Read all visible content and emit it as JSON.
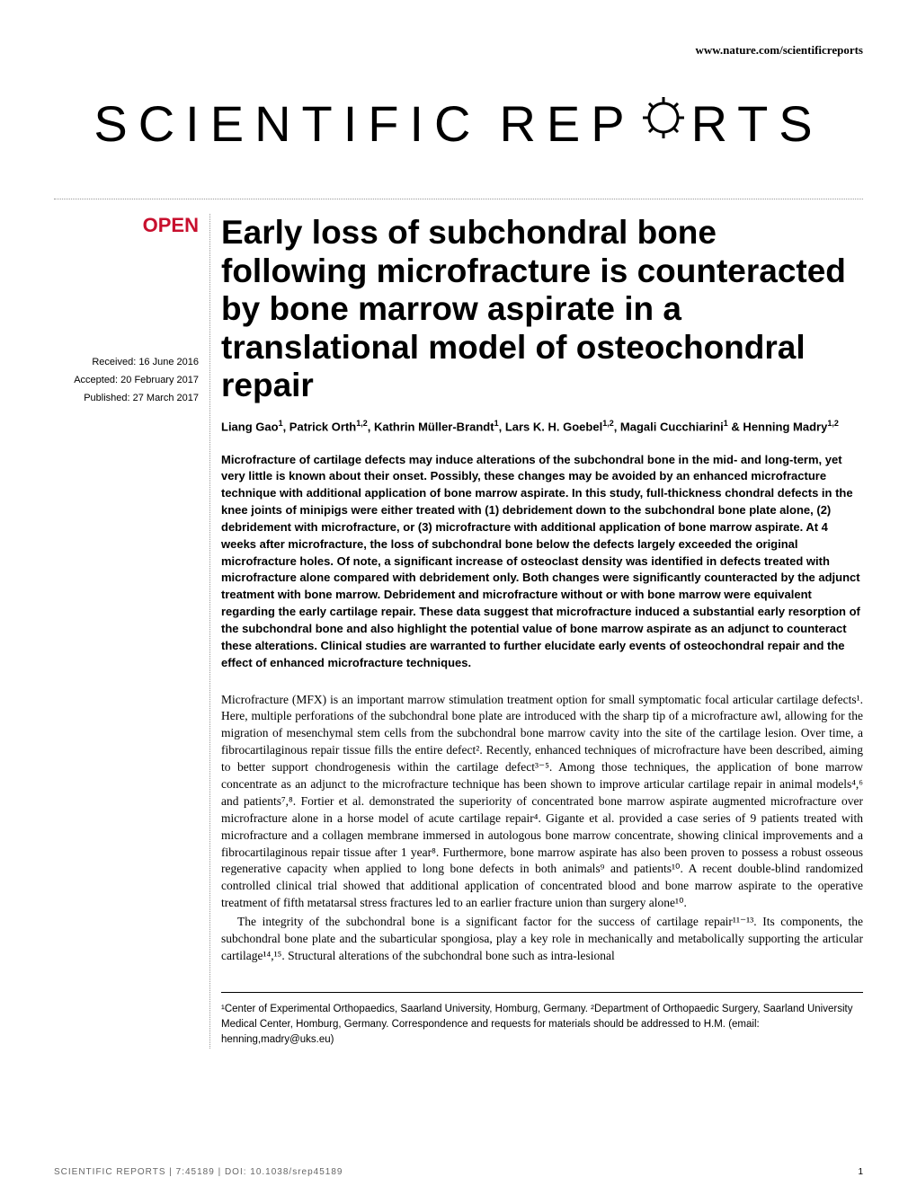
{
  "header": {
    "url": "www.nature.com/scientificreports"
  },
  "logo": {
    "left": "SCIENTIFIC",
    "right": "RTS",
    "mid": "REP"
  },
  "badges": {
    "open": "OPEN"
  },
  "dates": {
    "received": "Received: 16 June 2016",
    "accepted": "Accepted: 20 February 2017",
    "published": "Published: 27 March 2017"
  },
  "article": {
    "title": "Early loss of subchondral bone following microfracture is counteracted by bone marrow aspirate in a translational model of osteochondral repair",
    "authors_html": "Liang Gao<sup>1</sup>, Patrick Orth<sup>1,2</sup>, Kathrin Müller-Brandt<sup>1</sup>, Lars K. H. Goebel<sup>1,2</sup>, Magali Cucchiarini<sup>1</sup> & Henning Madry<sup>1,2</sup>",
    "abstract": "Microfracture of cartilage defects may induce alterations of the subchondral bone in the mid- and long-term, yet very little is known about their onset. Possibly, these changes may be avoided by an enhanced microfracture technique with additional application of bone marrow aspirate. In this study, full-thickness chondral defects in the knee joints of minipigs were either treated with (1) debridement down to the subchondral bone plate alone, (2) debridement with microfracture, or (3) microfracture with additional application of bone marrow aspirate. At 4 weeks after microfracture, the loss of subchondral bone below the defects largely exceeded the original microfracture holes. Of note, a significant increase of osteoclast density was identified in defects treated with microfracture alone compared with debridement only. Both changes were significantly counteracted by the adjunct treatment with bone marrow. Debridement and microfracture without or with bone marrow were equivalent regarding the early cartilage repair. These data suggest that microfracture induced a substantial early resorption of the subchondral bone and also highlight the potential value of bone marrow aspirate as an adjunct to counteract these alterations. Clinical studies are warranted to further elucidate early events of osteochondral repair and the effect of enhanced microfracture techniques."
  },
  "body": {
    "p1": "Microfracture (MFX) is an important marrow stimulation treatment option for small symptomatic focal articular cartilage defects¹. Here, multiple perforations of the subchondral bone plate are introduced with the sharp tip of a microfracture awl, allowing for the migration of mesenchymal stem cells from the subchondral bone marrow cavity into the site of the cartilage lesion. Over time, a fibrocartilaginous repair tissue fills the entire defect². Recently, enhanced techniques of microfracture have been described, aiming to better support chondrogenesis within the cartilage defect³⁻⁵. Among those techniques, the application of bone marrow concentrate as an adjunct to the microfracture technique has been shown to improve articular cartilage repair in animal models⁴,⁶ and patients⁷,⁸. Fortier et al. demonstrated the superiority of concentrated bone marrow aspirate augmented microfracture over microfracture alone in a horse model of acute cartilage repair⁴. Gigante et al. provided a case series of 9 patients treated with microfracture and a collagen membrane immersed in autologous bone marrow concentrate, showing clinical improvements and a fibrocartilaginous repair tissue after 1 year⁸. Furthermore, bone marrow aspirate has also been proven to possess a robust osseous regenerative capacity when applied to long bone defects in both animals⁹ and patients¹⁰. A recent double-blind randomized controlled clinical trial showed that additional application of concentrated blood and bone marrow aspirate to the operative treatment of fifth metatarsal stress fractures led to an earlier fracture union than surgery alone¹⁰.",
    "p2": "The integrity of the subchondral bone is a significant factor for the success of cartilage repair¹¹⁻¹³. Its components, the subchondral bone plate and the subarticular spongiosa, play a key role in mechanically and metabolically supporting the articular cartilage¹⁴,¹⁵. Structural alterations of the subchondral bone such as intra-lesional"
  },
  "affiliations": {
    "text": "¹Center of Experimental Orthopaedics, Saarland University, Homburg, Germany. ²Department of Orthopaedic Surgery, Saarland University Medical Center, Homburg, Germany. Correspondence and requests for materials should be addressed to H.M. (email: henning,madry@uks.eu)"
  },
  "footer": {
    "citation": "SCIENTIFIC REPORTS | 7:45189 | DOI: 10.1038/srep45189",
    "page": "1"
  },
  "colors": {
    "open_badge": "#c8102e",
    "text": "#000000",
    "footer_text": "#666666",
    "dotted": "#999999"
  }
}
